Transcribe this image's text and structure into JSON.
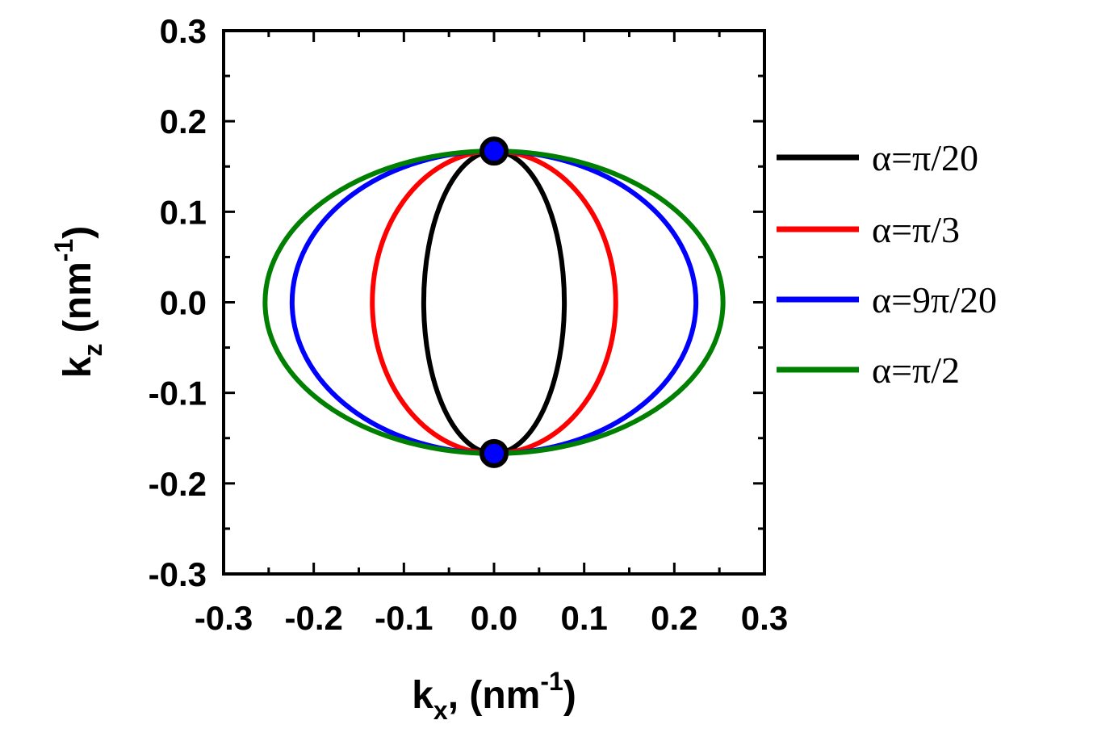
{
  "chart_data": {
    "type": "line",
    "title": "",
    "xlabel": {
      "main": "k",
      "sub": "x",
      "rest": ", (nm",
      "sup": "-1",
      "close": ")"
    },
    "ylabel": {
      "main": "k",
      "sub": "z",
      "rest": " (nm",
      "sup": "-1",
      "close": ")"
    },
    "xlim": [
      -0.3,
      0.3
    ],
    "ylim": [
      -0.3,
      0.3
    ],
    "x_ticks": [
      "-0.3",
      "-0.2",
      "-0.1",
      "0.0",
      "0.1",
      "0.2",
      "0.3"
    ],
    "y_ticks": [
      "0.3",
      "0.2",
      "0.1",
      "0.0",
      "-0.1",
      "-0.2",
      "-0.3"
    ],
    "grid": false,
    "legend_position": "right",
    "series": [
      {
        "name": "α=π/20",
        "color": "#000000",
        "shape": "ellipse",
        "x_semi_axis": 0.078,
        "z_semi_axis": 0.167
      },
      {
        "name": "α=π/3",
        "color": "#ff0000",
        "shape": "ellipse",
        "x_semi_axis": 0.135,
        "z_semi_axis": 0.167
      },
      {
        "name": "α=9π/20",
        "color": "#0000ff",
        "shape": "ellipse",
        "x_semi_axis": 0.224,
        "z_semi_axis": 0.167
      },
      {
        "name": "α=π/2",
        "color": "#008000",
        "shape": "ellipse",
        "x_semi_axis": 0.254,
        "z_semi_axis": 0.167
      }
    ],
    "points": [
      {
        "x": 0.0,
        "y": 0.167,
        "color": "#0000ff"
      },
      {
        "x": 0.0,
        "y": -0.167,
        "color": "#0000ff"
      }
    ]
  }
}
